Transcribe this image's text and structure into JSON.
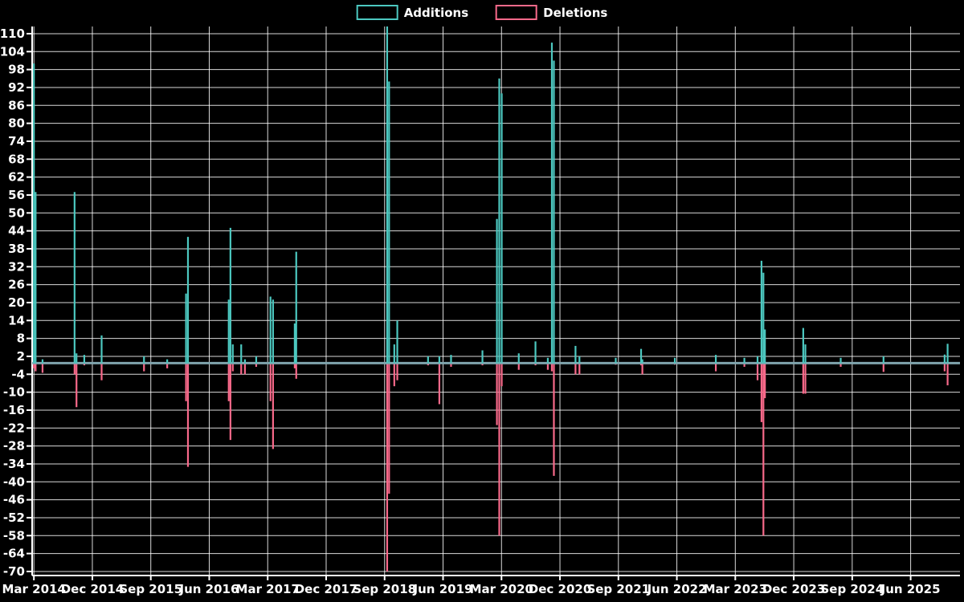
{
  "chart_data": {
    "type": "line",
    "title": "",
    "legend_position": "top-center",
    "grid": true,
    "background_color": "#000000",
    "grid_color": "#ffffff",
    "text_color": "#ffffff",
    "zero_line_color": "#7fa4ad",
    "ylim": [
      -71.4,
      112.4
    ],
    "series": [
      {
        "name": "Additions",
        "color": "#4cc8c0"
      },
      {
        "name": "Deletions",
        "color": "#f8698a"
      }
    ],
    "y_axis": {
      "tick_values": [
        110,
        104,
        98,
        92,
        86,
        80,
        74,
        68,
        62,
        56,
        50,
        44,
        38,
        32,
        26,
        20,
        14,
        8,
        2,
        -4,
        -10,
        -16,
        -22,
        -28,
        -34,
        -40,
        -46,
        -52,
        -58,
        -64,
        -70
      ]
    },
    "x_axis": {
      "tick_labels": [
        {
          "label": "Mar 2014",
          "date": "2014-03"
        },
        {
          "label": "Dec 2014",
          "date": "2014-12"
        },
        {
          "label": "Sep 2015",
          "date": "2015-09"
        },
        {
          "label": "Jun 2016",
          "date": "2016-06"
        },
        {
          "label": "Mar 2017",
          "date": "2017-03"
        },
        {
          "label": "Dec 2017",
          "date": "2017-12"
        },
        {
          "label": "Sep 2018",
          "date": "2018-09"
        },
        {
          "label": "Jun 2019",
          "date": "2019-06"
        },
        {
          "label": "Mar 2020",
          "date": "2020-03"
        },
        {
          "label": "Dec 2020",
          "date": "2020-12"
        },
        {
          "label": "Sep 2021",
          "date": "2021-09"
        },
        {
          "label": "Jun 2022",
          "date": "2022-06"
        },
        {
          "label": "Mar 2023",
          "date": "2023-03"
        },
        {
          "label": "Dec 2023",
          "date": "2023-12"
        },
        {
          "label": "Sep 2024",
          "date": "2024-09"
        },
        {
          "label": "Jun 2025",
          "date": "2025-06"
        }
      ]
    },
    "points": [
      {
        "date": "2014-03-01",
        "additions": 100,
        "deletions": -2
      },
      {
        "date": "2014-03-09",
        "additions": 57,
        "deletions": -3
      },
      {
        "date": "2014-04-11",
        "additions": 1,
        "deletions": -3.5
      },
      {
        "date": "2014-09-09",
        "additions": 57,
        "deletions": -4
      },
      {
        "date": "2014-09-18",
        "additions": 3,
        "deletions": -15
      },
      {
        "date": "2014-10-24",
        "additions": 2.5,
        "deletions": -1
      },
      {
        "date": "2015-01-14",
        "additions": 9,
        "deletions": -6
      },
      {
        "date": "2015-07-30",
        "additions": 2,
        "deletions": -3
      },
      {
        "date": "2015-11-17",
        "additions": 1,
        "deletions": -2
      },
      {
        "date": "2016-02-14",
        "additions": 23,
        "deletions": -13
      },
      {
        "date": "2016-02-23",
        "additions": 42,
        "deletions": -35
      },
      {
        "date": "2016-09-01",
        "additions": 21,
        "deletions": -13
      },
      {
        "date": "2016-09-09",
        "additions": 45,
        "deletions": -26
      },
      {
        "date": "2016-09-20",
        "additions": 6,
        "deletions": -3
      },
      {
        "date": "2016-10-29",
        "additions": 6,
        "deletions": -4
      },
      {
        "date": "2016-11-16",
        "additions": 1,
        "deletions": -4
      },
      {
        "date": "2017-01-08",
        "additions": 2,
        "deletions": -1.5
      },
      {
        "date": "2017-03-14",
        "additions": 22,
        "deletions": -13
      },
      {
        "date": "2017-03-26",
        "additions": 21,
        "deletions": -29
      },
      {
        "date": "2017-07-06",
        "additions": 13,
        "deletions": -2
      },
      {
        "date": "2017-07-13",
        "additions": 37,
        "deletions": -5.5
      },
      {
        "date": "2018-09-13",
        "additions": 113,
        "deletions": -70
      },
      {
        "date": "2018-09-22",
        "additions": 94,
        "deletions": -44
      },
      {
        "date": "2018-10-16",
        "additions": 6,
        "deletions": -8
      },
      {
        "date": "2018-10-30",
        "additions": 14,
        "deletions": -6
      },
      {
        "date": "2019-03-22",
        "additions": 2,
        "deletions": -1
      },
      {
        "date": "2019-05-14",
        "additions": 2,
        "deletions": -14
      },
      {
        "date": "2019-07-08",
        "additions": 2.5,
        "deletions": -1.5
      },
      {
        "date": "2019-12-03",
        "additions": 4,
        "deletions": -1
      },
      {
        "date": "2020-02-10",
        "additions": 48,
        "deletions": -21
      },
      {
        "date": "2020-02-21",
        "additions": 95,
        "deletions": -58
      },
      {
        "date": "2020-03-02",
        "additions": 90,
        "deletions": -8
      },
      {
        "date": "2020-05-21",
        "additions": 3,
        "deletions": -2.5
      },
      {
        "date": "2020-08-08",
        "additions": 7,
        "deletions": -1
      },
      {
        "date": "2020-10-05",
        "additions": 1.5,
        "deletions": -2.5
      },
      {
        "date": "2020-10-24",
        "additions": 107,
        "deletions": -3
      },
      {
        "date": "2020-11-03",
        "additions": 101,
        "deletions": -38
      },
      {
        "date": "2021-02-13",
        "additions": 5.5,
        "deletions": -4
      },
      {
        "date": "2021-03-01",
        "additions": 2,
        "deletions": -4
      },
      {
        "date": "2021-08-19",
        "additions": 1.5,
        "deletions": -0.8
      },
      {
        "date": "2021-12-16",
        "additions": 4.5,
        "deletions": -1
      },
      {
        "date": "2021-12-22",
        "additions": 1,
        "deletions": -4
      },
      {
        "date": "2022-05-22",
        "additions": 1.5,
        "deletions": -0.8
      },
      {
        "date": "2022-12-01",
        "additions": 2.5,
        "deletions": -3
      },
      {
        "date": "2023-04-13",
        "additions": 1.5,
        "deletions": -1.5
      },
      {
        "date": "2023-06-14",
        "additions": 2,
        "deletions": -6
      },
      {
        "date": "2023-07-02",
        "additions": 34,
        "deletions": -20
      },
      {
        "date": "2023-07-11",
        "additions": 30,
        "deletions": -58
      },
      {
        "date": "2023-07-18",
        "additions": 11,
        "deletions": -12
      },
      {
        "date": "2024-01-15",
        "additions": 11.5,
        "deletions": -10.5
      },
      {
        "date": "2024-01-25",
        "additions": 6,
        "deletions": -10.5
      },
      {
        "date": "2024-07-08",
        "additions": 1.5,
        "deletions": -1.5
      },
      {
        "date": "2025-01-26",
        "additions": 2,
        "deletions": -3.2
      },
      {
        "date": "2025-11-08",
        "additions": 2.6,
        "deletions": -3
      },
      {
        "date": "2025-11-22",
        "additions": 6.2,
        "deletions": -7.7
      }
    ]
  }
}
